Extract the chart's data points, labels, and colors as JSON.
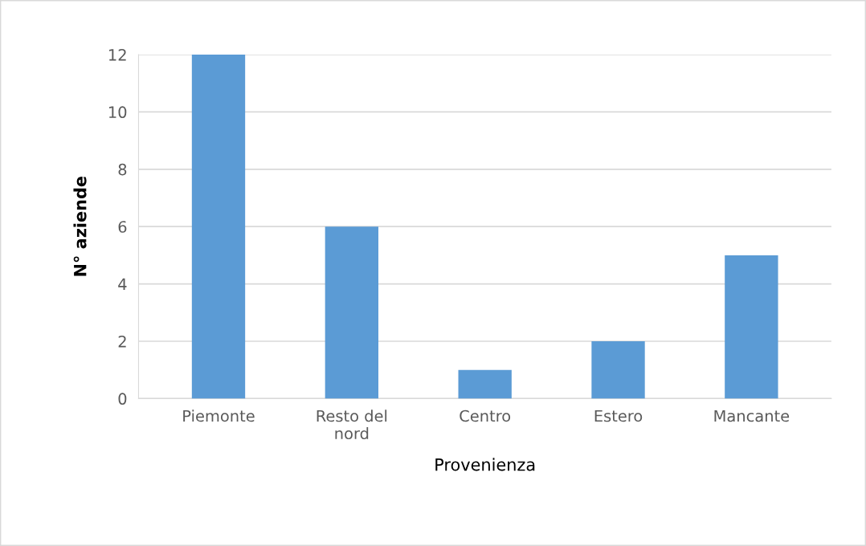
{
  "chart_data": {
    "type": "bar",
    "xlabel": "Provenienza",
    "ylabel": "N° aziende",
    "categories": [
      "Piemonte",
      "Resto del\nnord",
      "Centro",
      "Estero",
      "Mancante"
    ],
    "values": [
      12,
      6,
      1,
      2,
      5
    ],
    "color": "#5b9bd5",
    "ylim": [
      0,
      12
    ],
    "yticks": [
      0,
      2,
      4,
      6,
      8,
      10,
      12
    ],
    "grid": "y",
    "legend": false
  }
}
